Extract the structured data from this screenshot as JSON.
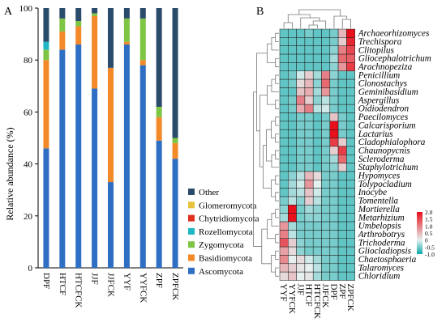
{
  "panels": {
    "a": "A",
    "b": "B"
  },
  "chart_data": [
    {
      "type": "bar",
      "stacked": true,
      "ylabel": "Relative abundance (%)",
      "ylim": [
        0,
        100
      ],
      "yticks": [
        0,
        20,
        40,
        60,
        80,
        100
      ],
      "categories": [
        "DPF",
        "HTCF",
        "HTCFCK",
        "JJF",
        "JJFCK",
        "YYF",
        "YYFCK",
        "ZPF",
        "ZPFCK"
      ],
      "series": [
        {
          "name": "Ascomycota",
          "color": "#2e6fc4",
          "values": [
            46,
            84,
            86,
            69,
            33,
            86,
            78,
            49,
            42
          ]
        },
        {
          "name": "Basidiomycota",
          "color": "#f4892a",
          "values": [
            34,
            7,
            7,
            28,
            44,
            1,
            2,
            9,
            6
          ]
        },
        {
          "name": "Zygomycota",
          "color": "#7ec544",
          "values": [
            4,
            5,
            2,
            1,
            0,
            9,
            16,
            4,
            2
          ]
        },
        {
          "name": "Rozellomycota",
          "color": "#1fb7c3",
          "values": [
            3,
            0,
            0,
            0,
            0,
            0,
            0,
            0,
            0
          ]
        },
        {
          "name": "Chytridiomycota",
          "color": "#e0301e",
          "values": [
            0,
            0,
            0,
            0,
            0,
            0,
            0,
            0,
            0
          ]
        },
        {
          "name": "Glomeromycota",
          "color": "#e8c23a",
          "values": [
            0,
            0,
            0,
            0,
            0,
            0,
            0,
            0,
            0
          ]
        },
        {
          "name": "Other",
          "color": "#2b4b6b",
          "values": [
            13,
            4,
            5,
            2,
            23,
            4,
            4,
            38,
            50
          ]
        }
      ],
      "legend_order": [
        "Other",
        "Glomeromycota",
        "Chytridiomycota",
        "Rozellomycota",
        "Zygomycota",
        "Basidiomycota",
        "Ascomycota"
      ]
    },
    {
      "type": "heatmap",
      "columns": [
        "YYF",
        "YYFCK",
        "JJF",
        "HTCF",
        "HTCFCK",
        "JJFCK",
        "DPF",
        "ZPF",
        "ZPFCK"
      ],
      "rows": [
        "Archaeorhizomyces",
        "Trechispora",
        "Clitopilus",
        "Gliocephalotrichum",
        "Arachnopeziza",
        "Penicillium",
        "Clonostachys",
        "Geminibasidium",
        "Aspergillus",
        "Oidiodendron",
        "Paecilomyces",
        "Calcarisporium",
        "Lactarius",
        "Cladophialophora",
        "Chaunopycnis",
        "Scleroderma",
        "Staphylotrichum",
        "Hypomyces",
        "Tolypocladium",
        "Inocybe",
        "Tomentella",
        "Mortierella",
        "Metarhizium",
        "Umbelopsis",
        "Arthrobotrys",
        "Trichoderma",
        "Gliocladiopsis",
        "Chaetosphaeria",
        "Talaromyces",
        "Chloridium"
      ],
      "values": [
        [
          -0.6,
          -0.6,
          -0.6,
          -0.5,
          -0.6,
          -0.6,
          -0.5,
          0.5,
          2.0
        ],
        [
          -0.6,
          -0.6,
          -0.6,
          -0.6,
          -0.6,
          -0.6,
          -0.5,
          0.3,
          1.8
        ],
        [
          -0.6,
          -0.6,
          -0.6,
          -0.6,
          -0.6,
          -0.6,
          -0.4,
          1.0,
          1.5
        ],
        [
          -0.6,
          -0.6,
          -0.6,
          -0.6,
          -0.6,
          -0.6,
          -0.3,
          1.2,
          1.3
        ],
        [
          -0.6,
          -0.6,
          -0.6,
          -0.6,
          -0.6,
          -0.6,
          -0.4,
          0.8,
          1.6
        ],
        [
          -0.6,
          -0.5,
          -0.1,
          0.3,
          -0.3,
          1.0,
          -0.4,
          -0.6,
          -0.6
        ],
        [
          -0.6,
          -0.5,
          0.2,
          0.5,
          -0.4,
          1.2,
          -0.5,
          -0.6,
          -0.6
        ],
        [
          -0.6,
          -0.6,
          0.4,
          0.6,
          -0.3,
          0.8,
          -0.5,
          -0.6,
          -0.6
        ],
        [
          -0.6,
          -0.5,
          1.0,
          0.3,
          -0.4,
          -0.2,
          -0.5,
          -0.6,
          -0.6
        ],
        [
          -0.6,
          -0.5,
          0.6,
          1.0,
          -0.2,
          -0.1,
          -0.5,
          -0.6,
          -0.6
        ],
        [
          -0.6,
          -0.6,
          -0.5,
          -0.5,
          -0.6,
          -0.5,
          0.4,
          -0.5,
          -0.6
        ],
        [
          -0.6,
          -0.6,
          -0.5,
          -0.5,
          -0.6,
          -0.5,
          2.0,
          -0.5,
          -0.6
        ],
        [
          -0.6,
          -0.6,
          -0.5,
          -0.5,
          -0.6,
          -0.5,
          2.0,
          -0.5,
          -0.6
        ],
        [
          -0.6,
          -0.6,
          -0.5,
          -0.5,
          -0.6,
          -0.5,
          1.6,
          0.3,
          -0.6
        ],
        [
          -0.6,
          -0.6,
          -0.5,
          -0.5,
          -0.6,
          -0.5,
          0.3,
          1.6,
          -0.6
        ],
        [
          -0.6,
          -0.6,
          -0.5,
          -0.5,
          -0.6,
          -0.5,
          -0.3,
          1.2,
          -0.6
        ],
        [
          -0.6,
          -0.6,
          -0.5,
          -0.5,
          -0.6,
          -0.5,
          -0.4,
          0.3,
          -0.6
        ],
        [
          -0.6,
          -0.4,
          -0.2,
          0.5,
          0.2,
          -0.5,
          -0.5,
          -0.6,
          -0.6
        ],
        [
          -0.6,
          -0.3,
          -0.1,
          0.8,
          0.0,
          -0.5,
          -0.5,
          -0.6,
          -0.6
        ],
        [
          -0.6,
          -0.3,
          -0.2,
          0.4,
          -0.1,
          -0.5,
          -0.5,
          -0.6,
          -0.6
        ],
        [
          -0.5,
          -0.2,
          -0.4,
          0.3,
          -0.2,
          -0.5,
          -0.5,
          -0.6,
          -0.6
        ],
        [
          -0.4,
          2.0,
          -0.5,
          -0.3,
          -0.4,
          -0.5,
          -0.5,
          -0.6,
          -0.6
        ],
        [
          -0.3,
          2.0,
          -0.5,
          -0.4,
          -0.4,
          -0.5,
          -0.5,
          -0.6,
          -0.6
        ],
        [
          0.8,
          -0.3,
          -0.5,
          -0.5,
          -0.5,
          -0.5,
          -0.5,
          -0.6,
          -0.6
        ],
        [
          1.0,
          -0.2,
          -0.5,
          -0.5,
          -0.5,
          -0.5,
          -0.5,
          -0.6,
          -0.6
        ],
        [
          1.4,
          0.3,
          -0.4,
          -0.5,
          -0.5,
          -0.5,
          -0.5,
          -0.6,
          -0.6
        ],
        [
          0.7,
          0.2,
          -0.4,
          -0.5,
          -0.5,
          -0.5,
          -0.5,
          -0.6,
          -0.6
        ],
        [
          0.9,
          0.0,
          0.2,
          -0.1,
          -0.3,
          -0.5,
          -0.5,
          -0.6,
          -0.6
        ],
        [
          0.5,
          0.3,
          0.1,
          0.0,
          -0.2,
          -0.5,
          -0.5,
          -0.6,
          -0.6
        ],
        [
          0.2,
          0.4,
          0.0,
          0.1,
          -0.3,
          -0.5,
          -0.5,
          -0.6,
          -0.6
        ]
      ],
      "colorscale": {
        "low": "#0aa8a8",
        "mid": "#e6f0f0",
        "high": "#e8101c",
        "range": [
          -1.0,
          2.0
        ]
      },
      "colorbar_ticks": [
        2.0,
        1.5,
        1.0,
        0.5,
        0,
        -0.5,
        -1.0
      ],
      "colorbar_labels": [
        "2.0",
        "1.5",
        "1.0",
        "0.5",
        "0",
        "-0.5",
        "-1.0"
      ]
    }
  ]
}
